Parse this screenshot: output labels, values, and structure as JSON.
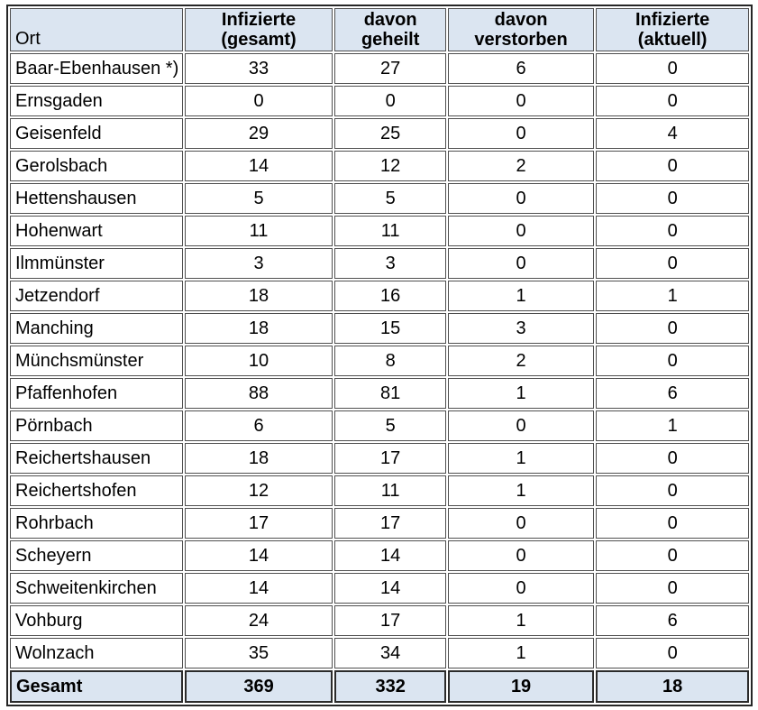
{
  "colors": {
    "page_background": "#ffffff",
    "header_row_bg": "#dbe5f1",
    "totals_row_bg": "#dbe5f1",
    "grid_line": "#4f4f4f",
    "outer_frame": "#262626",
    "text": "#000000"
  },
  "table": {
    "columns": [
      {
        "label": "Ort"
      },
      {
        "label": "Infizierte\n(gesamt)"
      },
      {
        "label": "davon\ngeheilt"
      },
      {
        "label": "davon\nverstorben"
      },
      {
        "label": "Infizierte\n(aktuell)"
      }
    ],
    "rows": [
      {
        "ort": "Baar-Ebenhausen *)",
        "values": [
          33,
          27,
          6,
          0
        ]
      },
      {
        "ort": "Ernsgaden",
        "values": [
          0,
          0,
          0,
          0
        ]
      },
      {
        "ort": "Geisenfeld",
        "values": [
          29,
          25,
          0,
          4
        ]
      },
      {
        "ort": "Gerolsbach",
        "values": [
          14,
          12,
          2,
          0
        ]
      },
      {
        "ort": "Hettenshausen",
        "values": [
          5,
          5,
          0,
          0
        ]
      },
      {
        "ort": "Hohenwart",
        "values": [
          11,
          11,
          0,
          0
        ]
      },
      {
        "ort": "Ilmmünster",
        "values": [
          3,
          3,
          0,
          0
        ]
      },
      {
        "ort": "Jetzendorf",
        "values": [
          18,
          16,
          1,
          1
        ]
      },
      {
        "ort": "Manching",
        "values": [
          18,
          15,
          3,
          0
        ]
      },
      {
        "ort": "Münchsmünster",
        "values": [
          10,
          8,
          2,
          0
        ]
      },
      {
        "ort": "Pfaffenhofen",
        "values": [
          88,
          81,
          1,
          6
        ]
      },
      {
        "ort": "Pörnbach",
        "values": [
          6,
          5,
          0,
          1
        ]
      },
      {
        "ort": "Reichertshausen",
        "values": [
          18,
          17,
          1,
          0
        ]
      },
      {
        "ort": "Reichertshofen",
        "values": [
          12,
          11,
          1,
          0
        ]
      },
      {
        "ort": "Rohrbach",
        "values": [
          17,
          17,
          0,
          0
        ]
      },
      {
        "ort": "Scheyern",
        "values": [
          14,
          14,
          0,
          0
        ]
      },
      {
        "ort": "Schweitenkirchen",
        "values": [
          14,
          14,
          0,
          0
        ]
      },
      {
        "ort": "Vohburg",
        "values": [
          24,
          17,
          1,
          6
        ]
      },
      {
        "ort": "Wolnzach",
        "values": [
          35,
          34,
          1,
          0
        ]
      }
    ],
    "footer": {
      "label": "Gesamt",
      "values": [
        369,
        332,
        19,
        18
      ]
    }
  }
}
